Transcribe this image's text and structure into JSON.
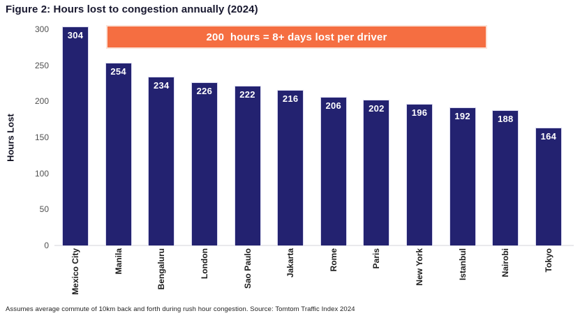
{
  "title": "Figure 2: Hours lost to congestion annually (2024)",
  "banner": {
    "text": "200  hours = 8+ days lost per driver",
    "bg_color": "#f56e41",
    "border_color": "#fbe3d8",
    "text_color": "#ffffff"
  },
  "footer": "Assumes average commute of 10km back and forth during rush hour congestion. Source: Tomtom Traffic Index 2024",
  "chart_data": {
    "type": "bar",
    "title": "Figure 2: Hours lost to congestion annually (2024)",
    "categories": [
      "Mexico City",
      "Manila",
      "Bengaluru",
      "London",
      "Sao Paulo",
      "Jakarta",
      "Rome",
      "Paris",
      "New York",
      "Istanbul",
      "Nairobi",
      "Tokyo"
    ],
    "values": [
      304,
      254,
      234,
      226,
      222,
      216,
      206,
      202,
      196,
      192,
      188,
      164
    ],
    "xlabel": "",
    "ylabel": "Hours Lost",
    "yticks": [
      0,
      50,
      100,
      150,
      200,
      250,
      300
    ],
    "ylim": [
      0,
      300
    ],
    "grid": false,
    "legend_position": "none",
    "bar_color": "#232270",
    "bar_border_color": "#d9d9ef",
    "value_label_color": "#ffffff",
    "annotation": "200  hours = 8+ days lost per driver"
  }
}
